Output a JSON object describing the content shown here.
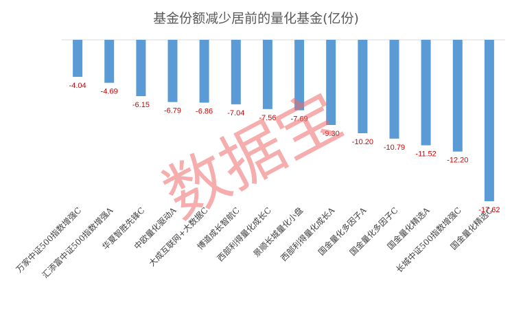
{
  "chart_data": {
    "type": "bar",
    "title": "基金份额减少居前的量化基金(亿份)",
    "watermark": "数据宝",
    "categories": [
      "万家中证500指数增强C",
      "汇添富中证500指数增强A",
      "华夏智胜先锋C",
      "中欧量化驱动A",
      "大成互联网+大数据C",
      "博道成长智航C",
      "西部利得量化成长C",
      "景顺长城量化小盘",
      "西部利得量化成长A",
      "国金量化多因子A",
      "国金量化多因子C",
      "国金量化精选A",
      "长城中证500指数增强C",
      "国金量化精选C"
    ],
    "values": [
      -4.04,
      -4.69,
      -6.15,
      -6.79,
      -6.86,
      -7.04,
      -7.56,
      -7.69,
      -9.3,
      -10.2,
      -10.79,
      -11.52,
      -12.2,
      -17.62
    ],
    "labels": [
      "-4.04",
      "-4.69",
      "-6.15",
      "-6.79",
      "-6.86",
      "-7.04",
      "-7.56",
      "-7.69",
      "-9.30",
      "-10.20",
      "-10.79",
      "-11.52",
      "-12.20",
      "-17.62"
    ],
    "ylim": [
      -17.62,
      0
    ],
    "grid": false,
    "colors": {
      "bar": "#5b9bd5",
      "axis": "#d9d9d9",
      "label": "#d00000"
    }
  }
}
